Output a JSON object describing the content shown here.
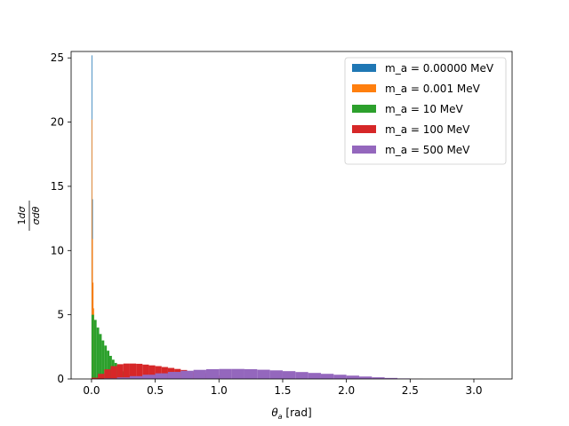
{
  "chart_data": {
    "type": "histogram",
    "xlabel": "θ_a [rad]",
    "ylabel": "1dσ / σdθ",
    "xlim": [
      -0.16,
      3.3
    ],
    "ylim": [
      0,
      25.5
    ],
    "xticks": [
      "0.0",
      "0.5",
      "1.0",
      "1.5",
      "2.0",
      "2.5",
      "3.0"
    ],
    "yticks": [
      "0",
      "5",
      "10",
      "15",
      "20",
      "25"
    ],
    "legend_position": "top-right",
    "series": [
      {
        "name": "m_a = 0.00000 MeV",
        "color": "#1f77b4",
        "x": [
          0.0,
          0.005,
          0.01,
          0.015,
          0.02
        ],
        "y": [
          25.2,
          14.0,
          5.0,
          1.5,
          0.3
        ]
      },
      {
        "name": "m_a = 0.001 MeV",
        "color": "#ff7f0e",
        "x": [
          0.0,
          0.005,
          0.01,
          0.015,
          0.02,
          0.025,
          0.03
        ],
        "y": [
          20.2,
          10.9,
          7.5,
          5.5,
          3.0,
          1.0,
          0.3
        ]
      },
      {
        "name": "m_a = 10 MeV",
        "color": "#2ca02c",
        "x": [
          0.0,
          0.02,
          0.04,
          0.06,
          0.08,
          0.1,
          0.12,
          0.14,
          0.16,
          0.18,
          0.2,
          0.22,
          0.24,
          0.26,
          0.28,
          0.3
        ],
        "y": [
          5.0,
          4.6,
          4.0,
          3.5,
          3.0,
          2.6,
          2.2,
          1.8,
          1.5,
          1.25,
          1.0,
          0.8,
          0.6,
          0.45,
          0.3,
          0.2
        ]
      },
      {
        "name": "m_a = 100 MeV",
        "color": "#d62728",
        "x": [
          0.0,
          0.05,
          0.1,
          0.15,
          0.2,
          0.25,
          0.3,
          0.35,
          0.4,
          0.45,
          0.5,
          0.55,
          0.6,
          0.65,
          0.7,
          0.75,
          0.8,
          0.85,
          0.9,
          0.95,
          1.0
        ],
        "y": [
          0.1,
          0.4,
          0.75,
          1.0,
          1.15,
          1.2,
          1.2,
          1.18,
          1.12,
          1.06,
          1.0,
          0.93,
          0.86,
          0.78,
          0.7,
          0.62,
          0.54,
          0.46,
          0.38,
          0.3,
          0.22
        ]
      },
      {
        "name": "m_a = 500 MeV",
        "color": "#9467bd",
        "x": [
          0.0,
          0.1,
          0.2,
          0.3,
          0.4,
          0.5,
          0.6,
          0.7,
          0.8,
          0.9,
          1.0,
          1.1,
          1.2,
          1.3,
          1.4,
          1.5,
          1.6,
          1.7,
          1.8,
          1.9,
          2.0,
          2.1,
          2.2,
          2.3,
          2.4,
          2.5
        ],
        "y": [
          0.0,
          0.05,
          0.12,
          0.22,
          0.33,
          0.44,
          0.55,
          0.64,
          0.71,
          0.76,
          0.78,
          0.78,
          0.76,
          0.72,
          0.67,
          0.61,
          0.54,
          0.47,
          0.4,
          0.33,
          0.26,
          0.19,
          0.13,
          0.08,
          0.04,
          0.01
        ]
      }
    ]
  }
}
